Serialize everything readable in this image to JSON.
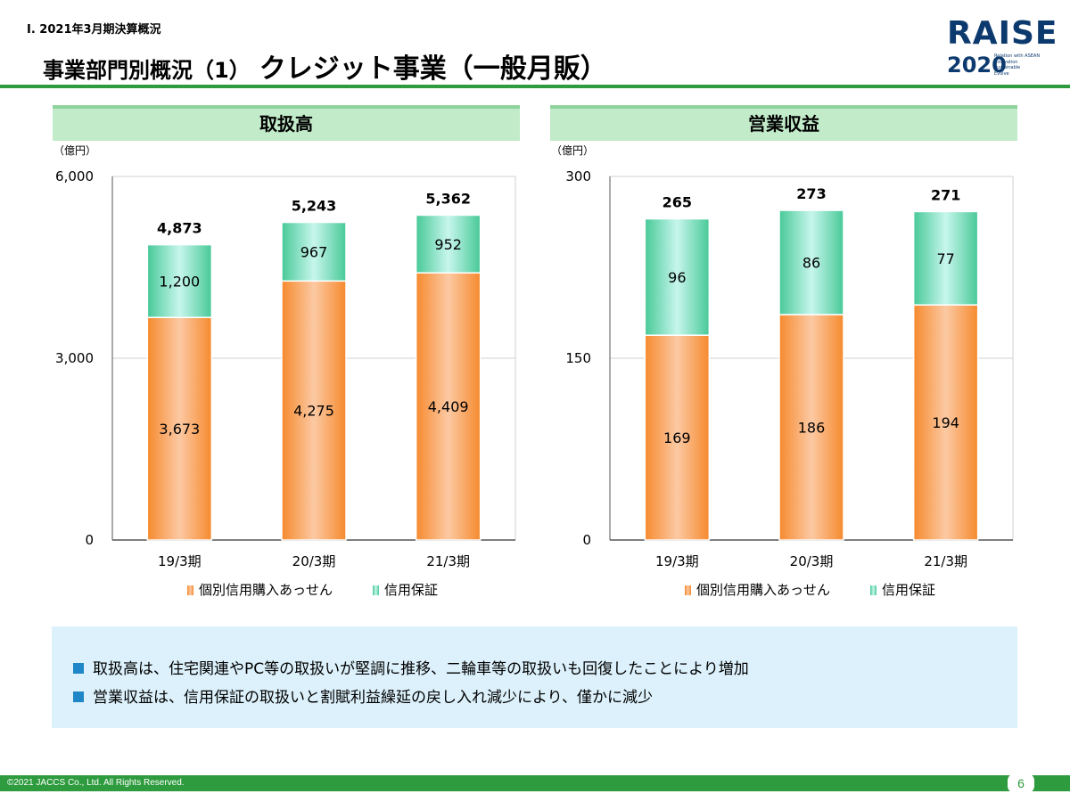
{
  "header": {
    "section": "Ⅰ. 2021年3月期決算概況",
    "title": "事業部門別概況（1）",
    "subtitle": "クレジット事業（一般月販）"
  },
  "logo": {
    "word": "RAISE",
    "year": "2020",
    "tagline": [
      "Relation with ASEAN",
      "Innovation",
      "Sustainable",
      "Evolve"
    ]
  },
  "colors": {
    "accent": "#2e9b3e",
    "orange": "#f7a35c",
    "teal": "#5ed3a6",
    "note_bg": "#dcf1fb"
  },
  "chart_data": [
    {
      "type": "bar",
      "stacked": true,
      "title": "取扱高",
      "unit": "（億円）",
      "categories": [
        "19/3期",
        "20/3期",
        "21/3期"
      ],
      "series": [
        {
          "name": "個別信用購入あっせん",
          "values": [
            3673,
            4275,
            4409
          ],
          "labels": [
            "3,673",
            "4,275",
            "4,409"
          ]
        },
        {
          "name": "信用保証",
          "values": [
            1200,
            967,
            952
          ],
          "labels": [
            "1,200",
            "967",
            "952"
          ]
        }
      ],
      "totals": [
        4873,
        5243,
        5362
      ],
      "total_labels": [
        "4,873",
        "5,243",
        "5,362"
      ],
      "ylim": [
        0,
        6000
      ],
      "yticks": [
        0,
        3000,
        6000
      ],
      "ytick_labels": [
        "0",
        "3,000",
        "6,000"
      ],
      "grid": true,
      "legend": "bottom"
    },
    {
      "type": "bar",
      "stacked": true,
      "title": "営業収益",
      "unit": "（億円）",
      "categories": [
        "19/3期",
        "20/3期",
        "21/3期"
      ],
      "series": [
        {
          "name": "個別信用購入あっせん",
          "values": [
            169,
            186,
            194
          ],
          "labels": [
            "169",
            "186",
            "194"
          ]
        },
        {
          "name": "信用保証",
          "values": [
            96,
            86,
            77
          ],
          "labels": [
            "96",
            "86",
            "77"
          ]
        }
      ],
      "totals": [
        265,
        273,
        271
      ],
      "total_labels": [
        "265",
        "273",
        "271"
      ],
      "ylim": [
        0,
        300
      ],
      "yticks": [
        0,
        150,
        300
      ],
      "ytick_labels": [
        "0",
        "150",
        "300"
      ],
      "grid": true,
      "legend": "bottom"
    }
  ],
  "notes": [
    "取扱高は、住宅関連やPC等の取扱いが堅調に推移、二輪車等の取扱いも回復したことにより増加",
    "営業収益は、信用保証の取扱いと割賦利益繰延の戻し入れ減少により、僅かに減少"
  ],
  "footer": {
    "copyright": "©2021 JACCS Co., Ltd. All Rights Reserved.",
    "page": "6"
  }
}
